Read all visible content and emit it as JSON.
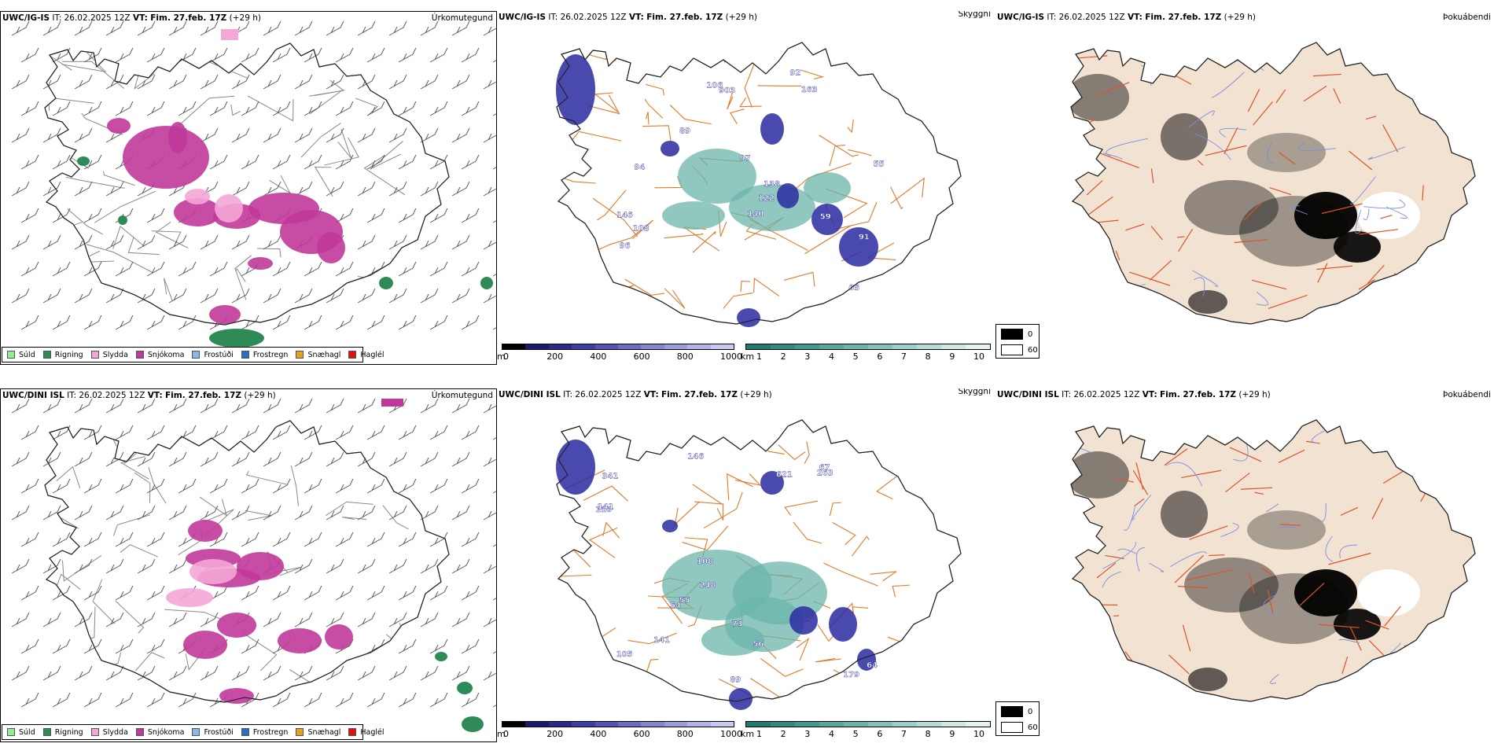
{
  "rows": [
    {
      "model": "UWC/IG-IS",
      "it_label": "IT:",
      "it_value": "26.02.2025 12Z",
      "vt_label": "VT:",
      "vt_value": "Fim. 27.feb. 17Z",
      "lead": "(+29 h)",
      "panels": {
        "precip": {
          "title": "Úrkomutegund"
        },
        "cloud": {
          "title": "Skyggni",
          "labels": [
            "108",
            "89",
            "91",
            "65",
            "122",
            "55",
            "140",
            "97",
            "94",
            "106",
            "903",
            "163",
            "59",
            "92",
            "96",
            "146",
            "138"
          ]
        },
        "fog": {
          "title": "Þokuábendi"
        }
      }
    },
    {
      "model": "UWC/DINI ISL",
      "it_label": "IT:",
      "it_value": "26.02.2025 12Z",
      "vt_label": "VT:",
      "vt_value": "Fim. 27.feb. 17Z",
      "lead": "(+29 h)",
      "panels": {
        "precip": {
          "title": "Úrkomutegund"
        },
        "cloud": {
          "title": "Skyggni",
          "labels": [
            "248",
            "64",
            "54",
            "55",
            "89",
            "105",
            "146",
            "141",
            "179",
            "67",
            "73",
            "110",
            "341",
            "621",
            "263",
            "108",
            "141",
            "56"
          ]
        },
        "fog": {
          "title": "Þokuábendi"
        }
      }
    }
  ],
  "precip_legend": [
    {
      "label": "Súld",
      "color": "#90ee90"
    },
    {
      "label": "Rigning",
      "color": "#2e8b57"
    },
    {
      "label": "Slydda",
      "color": "#f4a6d7"
    },
    {
      "label": "Snjókoma",
      "color": "#c0399a"
    },
    {
      "label": "Frostúði",
      "color": "#87b8e8"
    },
    {
      "label": "Frostregn",
      "color": "#2a6fbf"
    },
    {
      "label": "Snæhagl",
      "color": "#e8a020"
    },
    {
      "label": "Haglél",
      "color": "#e01010"
    }
  ],
  "height_scale": {
    "unit": "m",
    "ticks": [
      "0",
      "200",
      "400",
      "600",
      "800",
      "1000"
    ],
    "colors": [
      "#000000",
      "#1a1a6e",
      "#2a2a8c",
      "#3d3da6",
      "#5454b8",
      "#6d6dc6",
      "#8585d2",
      "#9c9cdc",
      "#b3b3e6",
      "#c9c9ef"
    ]
  },
  "km_scale": {
    "unit": "km",
    "ticks": [
      "1",
      "2",
      "3",
      "4",
      "5",
      "6",
      "7",
      "8",
      "9",
      "10"
    ],
    "colors": [
      "#1f7a70",
      "#2f8a80",
      "#41998f",
      "#56a79e",
      "#6cb4ac",
      "#84c1ba",
      "#9dcec8",
      "#b6dbd6",
      "#cee8e4",
      "#e6f3f1"
    ]
  },
  "fog_key": [
    {
      "label": "0",
      "color": "#000000"
    },
    {
      "label": "60",
      "color": "#ffffff"
    }
  ],
  "colors": {
    "land_fog": "#f2e2d2",
    "road_orange": "#e07a28",
    "road_red": "#e0522a",
    "river": "#7a8ee0",
    "snow": "#c0399a",
    "sleet": "#f4a6d7",
    "rain": "#2e8b57",
    "dark_blue": "#2a2aa0",
    "teal": "#6bb5ab"
  }
}
